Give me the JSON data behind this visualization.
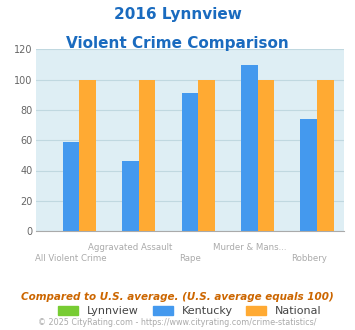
{
  "title_line1": "2016 Lynnview",
  "title_line2": "Violent Crime Comparison",
  "categories": [
    "All Violent Crime",
    "Aggravated Assault",
    "Rape",
    "Murder & Mans...",
    "Robbery"
  ],
  "xtick_top": [
    "",
    "Aggravated Assault",
    "",
    "Murder & Mans...",
    ""
  ],
  "xtick_bot": [
    "All Violent Crime",
    "",
    "Rape",
    "",
    "Robbery"
  ],
  "lynnview": [
    0,
    0,
    0,
    0,
    0
  ],
  "kentucky": [
    59,
    46,
    91,
    110,
    74
  ],
  "national": [
    100,
    100,
    100,
    100,
    100
  ],
  "color_lynnview": "#77cc33",
  "color_kentucky": "#4499ee",
  "color_national": "#ffaa33",
  "ylim": [
    0,
    120
  ],
  "yticks": [
    0,
    20,
    40,
    60,
    80,
    100,
    120
  ],
  "background_color": "#deeef4",
  "grid_color": "#c0d8e0",
  "title_color": "#1a6bbf",
  "tick_color": "#aaaaaa",
  "footer_text": "Compared to U.S. average. (U.S. average equals 100)",
  "credit_text": "© 2025 CityRating.com - https://www.cityrating.com/crime-statistics/",
  "footer_color": "#cc6600",
  "credit_color": "#aaaaaa",
  "legend_labels": [
    "Lynnview",
    "Kentucky",
    "National"
  ],
  "bar_width": 0.28
}
